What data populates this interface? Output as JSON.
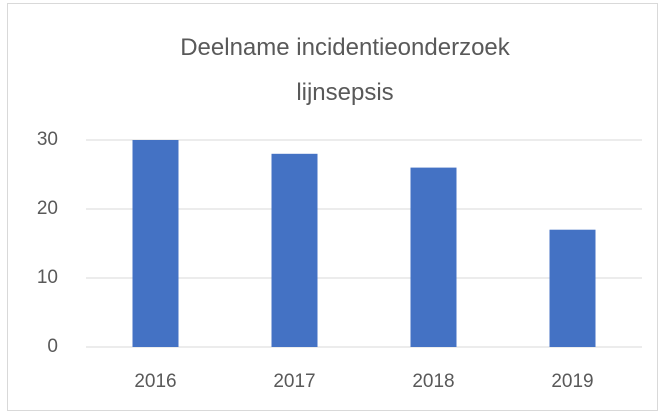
{
  "chart_data": {
    "type": "bar",
    "title": "Deelname incidentieonderzoek lijnsepsis",
    "categories": [
      "2016",
      "2017",
      "2018",
      "2019"
    ],
    "values": [
      30,
      28,
      26,
      17
    ],
    "color": "#4472c4",
    "ylim": [
      0,
      30
    ],
    "yticks": [
      0,
      10,
      20,
      30
    ],
    "grid": true
  }
}
